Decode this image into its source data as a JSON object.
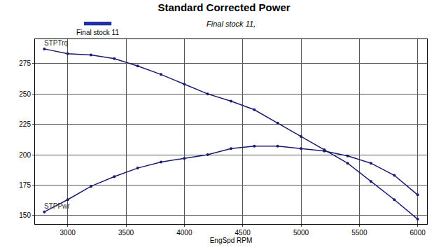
{
  "chart_data": {
    "type": "line",
    "title": "Standard Corrected Power",
    "subtitle": "Final stock 11,",
    "x_label": "EngSpd RPM",
    "annotations": [
      {
        "text": "Final stock 11",
        "color": "#1f2fa8"
      }
    ],
    "x": [
      2800,
      3000,
      3200,
      3400,
      3600,
      3800,
      4000,
      4200,
      4400,
      4600,
      4800,
      5000,
      5200,
      5400,
      5600,
      5800,
      6000
    ],
    "series": [
      {
        "name": "STPTrq",
        "color": "#1a1a6e",
        "marker": "circle",
        "values": [
          287,
          283,
          282,
          279,
          273,
          266,
          258,
          250,
          244,
          237,
          226,
          215,
          204,
          193,
          178,
          163,
          147
        ]
      },
      {
        "name": "STPPwr",
        "color": "#1a1a6e",
        "marker": "circle",
        "values": [
          153,
          163,
          174,
          182,
          189,
          194,
          197,
          200,
          205,
          207,
          207,
          205,
          203,
          199,
          193,
          183,
          167
        ]
      }
    ],
    "xlim": [
      2720,
      6080
    ],
    "xticks": [
      3000,
      3500,
      4000,
      4500,
      5000,
      5500,
      6000
    ],
    "ylim": [
      143,
      295
    ],
    "yticks": [
      150,
      175,
      200,
      225,
      250,
      275
    ],
    "grid": true
  }
}
